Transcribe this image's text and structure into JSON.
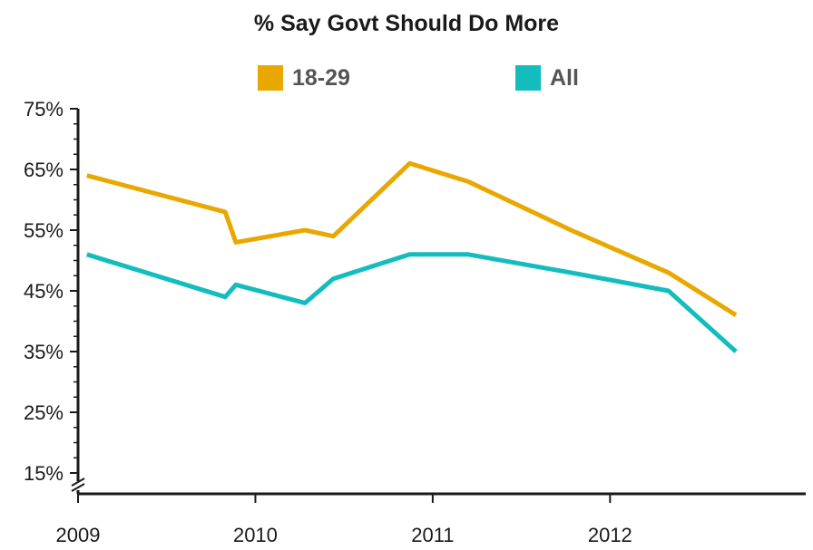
{
  "chart_data": {
    "type": "line",
    "title": "% Say Govt Should Do More",
    "xlabel": "",
    "ylabel": "",
    "ylim": [
      15,
      75
    ],
    "xlim": [
      2009.0,
      2012.95
    ],
    "y_ticks": [
      "15%",
      "25%",
      "35%",
      "45%",
      "55%",
      "65%",
      "75%"
    ],
    "y_tick_values": [
      15,
      25,
      35,
      45,
      55,
      65,
      75
    ],
    "x_ticks": [
      "2009",
      "2010",
      "2011",
      "2012"
    ],
    "x_tick_values": [
      2009,
      2010,
      2011,
      2012
    ],
    "grid": false,
    "legend_position": "top",
    "axis_break": true,
    "series": [
      {
        "name": "18-29",
        "color": "#E8A800",
        "x": [
          2009.05,
          2009.83,
          2009.89,
          2010.28,
          2010.44,
          2010.87,
          2011.2,
          2011.78,
          2012.33,
          2012.71
        ],
        "y": [
          64,
          58,
          53,
          55,
          54,
          66,
          63,
          55,
          48,
          41
        ]
      },
      {
        "name": "All",
        "color": "#14BDBD",
        "x": [
          2009.05,
          2009.83,
          2009.89,
          2010.28,
          2010.44,
          2010.87,
          2011.2,
          2011.78,
          2012.33,
          2012.71
        ],
        "y": [
          51,
          44,
          46,
          43,
          47,
          51,
          51,
          48,
          45,
          35
        ]
      }
    ]
  }
}
